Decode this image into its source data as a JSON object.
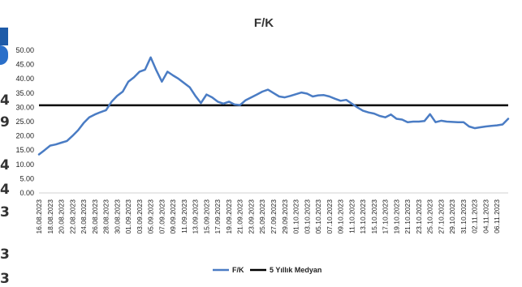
{
  "side_fragments": [
    "4",
    "9",
    "4",
    "4",
    "3",
    "3",
    "3"
  ],
  "chart_data": {
    "type": "line",
    "title": "F/K",
    "xlabel": "",
    "ylabel": "",
    "ylim": [
      0,
      50
    ],
    "yticks": [
      "0.00",
      "5.00",
      "10.00",
      "15.00",
      "20.00",
      "25.00",
      "30.00",
      "35.00",
      "40.00",
      "45.00",
      "50.00"
    ],
    "x_tick_labels": [
      "16.08.2023",
      "18.08.2023",
      "20.08.2023",
      "22.08.2023",
      "24.08.2023",
      "26.08.2023",
      "28.08.2023",
      "30.08.2023",
      "01.09.2023",
      "03.09.2023",
      "05.09.2023",
      "07.09.2023",
      "09.09.2023",
      "11.09.2023",
      "13.09.2023",
      "15.09.2023",
      "17.09.2023",
      "19.09.2023",
      "21.09.2023",
      "23.09.2023",
      "25.09.2023",
      "27.09.2023",
      "29.09.2023",
      "01.10.2023",
      "03.10.2023",
      "05.10.2023",
      "07.10.2023",
      "09.10.2023",
      "11.10.2023",
      "13.10.2023",
      "15.10.2023",
      "17.10.2023",
      "19.10.2023",
      "21.10.2023",
      "23.10.2023",
      "25.10.2023",
      "27.10.2023",
      "29.10.2023",
      "31.10.2023",
      "02.11.2023",
      "04.11.2023",
      "06.11.2023"
    ],
    "series": [
      {
        "name": "F/K",
        "color": "#4a7cc4",
        "points": [
          [
            "16.08.2023",
            13.5
          ],
          [
            "17.08.2023",
            15.0
          ],
          [
            "18.08.2023",
            16.6
          ],
          [
            "19.08.2023",
            17.0
          ],
          [
            "20.08.2023",
            17.6
          ],
          [
            "21.08.2023",
            18.2
          ],
          [
            "22.08.2023",
            20.0
          ],
          [
            "23.08.2023",
            22.0
          ],
          [
            "24.08.2023",
            24.5
          ],
          [
            "25.08.2023",
            26.5
          ],
          [
            "26.08.2023",
            27.5
          ],
          [
            "27.08.2023",
            28.3
          ],
          [
            "28.08.2023",
            29.0
          ],
          [
            "29.08.2023",
            32.0
          ],
          [
            "30.08.2023",
            34.0
          ],
          [
            "31.08.2023",
            35.5
          ],
          [
            "01.09.2023",
            39.0
          ],
          [
            "02.09.2023",
            40.5
          ],
          [
            "03.09.2023",
            42.5
          ],
          [
            "04.09.2023",
            43.2
          ],
          [
            "05.09.2023",
            47.5
          ],
          [
            "06.09.2023",
            43.0
          ],
          [
            "07.09.2023",
            39.0
          ],
          [
            "08.09.2023",
            42.5
          ],
          [
            "09.09.2023",
            41.2
          ],
          [
            "10.09.2023",
            40.0
          ],
          [
            "11.09.2023",
            38.5
          ],
          [
            "12.09.2023",
            37.0
          ],
          [
            "13.09.2023",
            34.0
          ],
          [
            "14.09.2023",
            31.5
          ],
          [
            "15.09.2023",
            34.5
          ],
          [
            "16.09.2023",
            33.5
          ],
          [
            "17.09.2023",
            32.0
          ],
          [
            "18.09.2023",
            31.3
          ],
          [
            "19.09.2023",
            32.0
          ],
          [
            "20.09.2023",
            31.0
          ],
          [
            "21.09.2023",
            30.8
          ],
          [
            "22.09.2023",
            32.5
          ],
          [
            "23.09.2023",
            33.5
          ],
          [
            "24.09.2023",
            34.5
          ],
          [
            "25.09.2023",
            35.5
          ],
          [
            "26.09.2023",
            36.2
          ],
          [
            "27.09.2023",
            35.0
          ],
          [
            "28.09.2023",
            33.8
          ],
          [
            "29.09.2023",
            33.5
          ],
          [
            "30.09.2023",
            34.0
          ],
          [
            "01.10.2023",
            34.6
          ],
          [
            "02.10.2023",
            35.2
          ],
          [
            "03.10.2023",
            34.8
          ],
          [
            "04.10.2023",
            33.8
          ],
          [
            "05.10.2023",
            34.2
          ],
          [
            "06.10.2023",
            34.3
          ],
          [
            "07.10.2023",
            33.8
          ],
          [
            "08.10.2023",
            33.0
          ],
          [
            "09.10.2023",
            32.3
          ],
          [
            "10.10.2023",
            32.6
          ],
          [
            "11.10.2023",
            31.3
          ],
          [
            "12.10.2023",
            30.0
          ],
          [
            "13.10.2023",
            28.8
          ],
          [
            "14.10.2023",
            28.2
          ],
          [
            "15.10.2023",
            27.8
          ],
          [
            "16.10.2023",
            27.0
          ],
          [
            "17.10.2023",
            26.5
          ],
          [
            "18.10.2023",
            27.5
          ],
          [
            "19.10.2023",
            26.0
          ],
          [
            "20.10.2023",
            25.7
          ],
          [
            "21.10.2023",
            24.8
          ],
          [
            "22.10.2023",
            25.0
          ],
          [
            "23.10.2023",
            25.0
          ],
          [
            "24.10.2023",
            25.2
          ],
          [
            "25.10.2023",
            27.6
          ],
          [
            "26.10.2023",
            24.8
          ],
          [
            "27.10.2023",
            25.3
          ],
          [
            "28.10.2023",
            25.0
          ],
          [
            "29.10.2023",
            24.9
          ],
          [
            "30.10.2023",
            24.8
          ],
          [
            "31.10.2023",
            24.8
          ],
          [
            "01.11.2023",
            23.3
          ],
          [
            "02.11.2023",
            22.7
          ],
          [
            "03.11.2023",
            23.0
          ],
          [
            "04.11.2023",
            23.3
          ],
          [
            "05.11.2023",
            23.5
          ],
          [
            "06.11.2023",
            23.7
          ],
          [
            "07.11.2023",
            24.0
          ],
          [
            "08.11.2023",
            26.0
          ]
        ]
      },
      {
        "name": "5 Yıllık Medyan",
        "color": "#000000",
        "value": 30.7
      }
    ],
    "legend": [
      "F/K",
      "5 Yıllık Medyan"
    ],
    "legend_position": "bottom-center",
    "grid": false
  }
}
